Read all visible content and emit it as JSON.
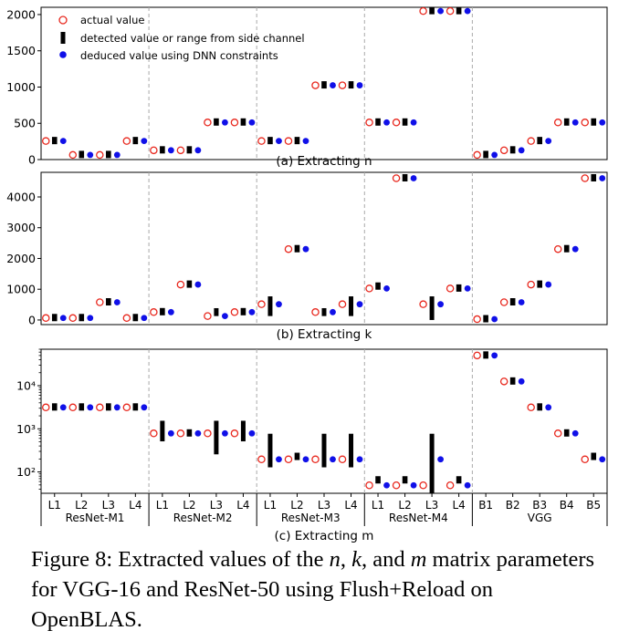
{
  "legend": {
    "actual": "actual value",
    "detected": "detected value or range from side channel",
    "deduced": "deduced value using DNN constraints"
  },
  "colors": {
    "actual": "#e8281e",
    "detected": "#000000",
    "deduced": "#1010e8",
    "separator": "#aaaaaa"
  },
  "x_labels": [
    "L1",
    "L2",
    "L3",
    "L4",
    "L1",
    "L2",
    "L3",
    "L4",
    "L1",
    "L2",
    "L3",
    "L4",
    "L1",
    "L2",
    "L3",
    "L4",
    "B1",
    "B2",
    "B3",
    "B4",
    "B5"
  ],
  "groups": [
    "ResNet-M1",
    "ResNet-M2",
    "ResNet-M3",
    "ResNet-M4",
    "VGG"
  ],
  "caption": {
    "prefix": "Figure 8: Extracted values of the ",
    "n": "n",
    "sep1": ", ",
    "k": "k",
    "sep2": ", and ",
    "m": "m",
    "suffix": " matrix parameters for VGG-16 and ResNet-50 using Flush+Reload on OpenBLAS."
  },
  "chart_data": [
    {
      "type": "scatter",
      "title": "(a) Extracting n",
      "yscale": "linear",
      "ylim": [
        0,
        2100
      ],
      "yticks": [
        0,
        500,
        1000,
        1500,
        2000
      ],
      "grid": false,
      "legend_position": "upper-left",
      "series": [
        {
          "name": "actual value",
          "values": [
            256,
            64,
            64,
            256,
            128,
            128,
            512,
            512,
            256,
            256,
            1024,
            1024,
            512,
            512,
            2048,
            2048,
            64,
            128,
            256,
            512,
            512
          ]
        },
        {
          "name": "detected value or range from side channel",
          "values": [
            256,
            64,
            64,
            256,
            128,
            128,
            512,
            512,
            256,
            256,
            1024,
            1024,
            512,
            512,
            2048,
            2048,
            64,
            128,
            256,
            512,
            512
          ]
        },
        {
          "name": "deduced value using DNN constraints",
          "values": [
            256,
            64,
            64,
            256,
            128,
            128,
            512,
            512,
            256,
            256,
            1024,
            1024,
            512,
            512,
            2048,
            2048,
            64,
            128,
            256,
            512,
            512
          ]
        }
      ]
    },
    {
      "type": "scatter",
      "title": "(b) Extracting k",
      "yscale": "linear",
      "ylim": [
        -150,
        4800
      ],
      "yticks": [
        0,
        1000,
        2000,
        3000,
        4000
      ],
      "grid": false,
      "series": [
        {
          "name": "actual value",
          "values": [
            64,
            64,
            576,
            64,
            256,
            1152,
            128,
            256,
            512,
            2304,
            256,
            512,
            1024,
            4608,
            512,
            1024,
            27,
            576,
            1152,
            2304,
            4608
          ]
        },
        {
          "name": "detected value or range from side channel",
          "values": [
            64,
            64,
            576,
            64,
            256,
            1152,
            [
              128,
              384
            ],
            256,
            [
              128,
              768
            ],
            2304,
            [
              128,
              384
            ],
            [
              128,
              768
            ],
            1088,
            4608,
            [
              0,
              768
            ],
            1024,
            27,
            576,
            1152,
            2304,
            4608
          ]
        },
        {
          "name": "deduced value using DNN constraints",
          "values": [
            64,
            64,
            576,
            64,
            256,
            1152,
            128,
            256,
            512,
            2304,
            256,
            512,
            1024,
            4608,
            512,
            1024,
            27,
            576,
            1152,
            2304,
            4608
          ]
        }
      ]
    },
    {
      "type": "scatter",
      "title": "(c) Extracting m",
      "yscale": "log",
      "ylim": [
        32,
        70000
      ],
      "yticks": [
        100,
        1000,
        10000
      ],
      "ytick_labels": [
        "10²",
        "10³",
        "10⁴"
      ],
      "grid": false,
      "series": [
        {
          "name": "actual value",
          "values": [
            3136,
            3136,
            3136,
            3136,
            784,
            784,
            784,
            784,
            196,
            196,
            196,
            196,
            49,
            49,
            49,
            49,
            50176,
            12544,
            3136,
            784,
            196
          ]
        },
        {
          "name": "detected value or range from side channel",
          "values": [
            3136,
            3136,
            3136,
            3136,
            [
              512,
              1536
            ],
            784,
            [
              256,
              1536
            ],
            [
              512,
              1536
            ],
            [
              128,
              768
            ],
            224,
            [
              128,
              768
            ],
            [
              128,
              768
            ],
            64,
            64,
            [
              32,
              768
            ],
            64,
            50176,
            12544,
            3136,
            784,
            224
          ]
        },
        {
          "name": "deduced value using DNN constraints",
          "values": [
            3136,
            3136,
            3136,
            3136,
            784,
            784,
            784,
            784,
            196,
            196,
            196,
            196,
            49,
            49,
            196,
            49,
            50176,
            12544,
            3136,
            784,
            196
          ]
        }
      ]
    }
  ]
}
